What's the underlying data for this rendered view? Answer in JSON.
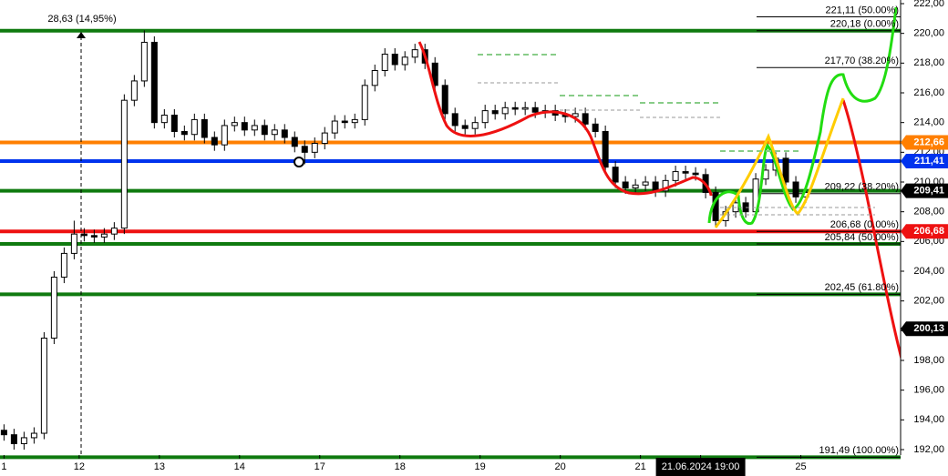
{
  "chart_data": {
    "type": "candlestick",
    "measure_label": "28,63 (14,95%)",
    "xlim": [
      -0.4,
      89.5
    ],
    "ylim": [
      191.7,
      222.2
    ],
    "xticks": [
      {
        "value": 0,
        "label": "1"
      },
      {
        "value": 7.5,
        "label": "12"
      },
      {
        "value": 15.5,
        "label": "13"
      },
      {
        "value": 23.5,
        "label": "14"
      },
      {
        "value": 31.5,
        "label": "17"
      },
      {
        "value": 39.5,
        "label": "18"
      },
      {
        "value": 47.5,
        "label": "19"
      },
      {
        "value": 55.5,
        "label": "20"
      },
      {
        "value": 63.5,
        "label": "21"
      },
      {
        "value": 69.5,
        "label": "21.06.2024 19:00"
      },
      {
        "value": 79.5,
        "label": "25"
      }
    ],
    "yticks": [
      {
        "value": 192,
        "label": "192,00"
      },
      {
        "value": 194,
        "label": "194,00"
      },
      {
        "value": 196,
        "label": "196,00"
      },
      {
        "value": 198,
        "label": "198,00"
      },
      {
        "value": 200,
        "label": "200,00"
      },
      {
        "value": 202,
        "label": "202,00"
      },
      {
        "value": 204,
        "label": "204,00"
      },
      {
        "value": 206,
        "label": "206,00"
      },
      {
        "value": 208,
        "label": "208,00"
      },
      {
        "value": 210,
        "label": "210,00"
      },
      {
        "value": 212,
        "label": "212,00"
      },
      {
        "value": 214,
        "label": "214,00"
      },
      {
        "value": 216,
        "label": "216,00"
      },
      {
        "value": 218,
        "label": "218,00"
      },
      {
        "value": 220,
        "label": "220,00"
      },
      {
        "value": 222,
        "label": "222,00"
      }
    ],
    "open": [
      193.3,
      193.0,
      192.4,
      192.8,
      193.1,
      199.5,
      203.6,
      205.2,
      206.5,
      206.4,
      206.3,
      206.5,
      206.9,
      215.5,
      216.8,
      219.4,
      214.0,
      214.5,
      213.4,
      213.2,
      214.2,
      213.0,
      212.5,
      213.8,
      214.0,
      213.5,
      213.8,
      213.2,
      213.5,
      213.0,
      212.4,
      212.0,
      212.6,
      213.3,
      214.1,
      214.0,
      214.2,
      216.5,
      217.5,
      218.6,
      217.9,
      218.4,
      218.9,
      218.0,
      216.5,
      214.6,
      213.8,
      213.6,
      214.0,
      214.8,
      214.6,
      215.0,
      214.9,
      215.0,
      214.7,
      214.8,
      214.5,
      214.4,
      214.6,
      213.9,
      213.4,
      211.0,
      210.0,
      209.6,
      209.8,
      210.0,
      209.4,
      210.1,
      210.7,
      210.6,
      210.5,
      209.3,
      207.4,
      208.0,
      208.6,
      208.0,
      210.2,
      210.8,
      211.6,
      210.0,
      209.0
    ],
    "high": [
      193.7,
      193.4,
      193.2,
      193.5,
      199.9,
      204.0,
      205.6,
      207.4,
      206.9,
      206.8,
      206.9,
      207.3,
      215.9,
      217.2,
      220.2,
      219.8,
      214.9,
      214.9,
      213.8,
      214.6,
      214.6,
      213.4,
      214.2,
      214.4,
      214.4,
      214.2,
      214.2,
      213.9,
      213.9,
      213.4,
      212.8,
      213.0,
      213.7,
      214.5,
      214.5,
      214.6,
      216.9,
      217.9,
      219.0,
      219.0,
      218.8,
      219.3,
      219.3,
      218.4,
      216.9,
      215.0,
      214.2,
      214.4,
      215.2,
      215.2,
      215.4,
      215.4,
      215.4,
      215.4,
      215.2,
      215.2,
      214.9,
      215.0,
      215.0,
      214.3,
      213.8,
      211.4,
      210.4,
      210.2,
      210.4,
      210.4,
      210.5,
      211.1,
      211.1,
      211.0,
      210.9,
      209.7,
      208.4,
      209.0,
      209.0,
      210.6,
      211.2,
      212.0,
      212.0,
      210.4,
      209.7
    ],
    "low": [
      192.6,
      192.0,
      192.0,
      192.4,
      192.7,
      199.1,
      203.2,
      204.8,
      206.0,
      205.9,
      205.9,
      206.1,
      206.5,
      215.1,
      216.4,
      213.6,
      213.6,
      213.0,
      212.8,
      212.8,
      212.6,
      212.1,
      212.1,
      213.4,
      213.1,
      213.1,
      212.8,
      212.8,
      212.6,
      212.0,
      211.2,
      211.6,
      212.2,
      212.9,
      213.6,
      213.6,
      213.8,
      216.1,
      217.1,
      217.5,
      217.5,
      218.0,
      217.6,
      216.1,
      214.2,
      213.4,
      213.2,
      213.2,
      213.6,
      214.2,
      214.2,
      214.5,
      214.5,
      214.3,
      214.3,
      214.1,
      214.0,
      214.0,
      213.5,
      213.0,
      210.6,
      209.6,
      209.2,
      209.2,
      209.4,
      209.0,
      209.0,
      209.7,
      210.2,
      210.1,
      208.9,
      207.0,
      207.0,
      207.6,
      207.6,
      207.6,
      209.8,
      210.4,
      209.6,
      208.6,
      208.6
    ],
    "close": [
      193.0,
      192.4,
      192.8,
      193.1,
      199.5,
      203.6,
      205.2,
      206.5,
      206.4,
      206.3,
      206.5,
      206.9,
      215.5,
      216.8,
      219.4,
      214.0,
      214.5,
      213.4,
      213.2,
      214.2,
      213.0,
      212.5,
      213.8,
      214.0,
      213.5,
      213.8,
      213.2,
      213.5,
      213.0,
      212.4,
      212.0,
      212.6,
      213.3,
      214.1,
      214.0,
      214.2,
      216.5,
      217.5,
      218.6,
      217.9,
      218.4,
      218.9,
      218.0,
      216.5,
      214.6,
      213.8,
      213.6,
      214.0,
      214.8,
      214.6,
      215.0,
      214.9,
      215.0,
      214.7,
      214.8,
      214.5,
      214.4,
      214.6,
      213.9,
      213.4,
      211.0,
      210.0,
      209.6,
      209.8,
      210.0,
      209.4,
      210.1,
      210.7,
      210.6,
      210.5,
      209.3,
      207.4,
      208.0,
      208.6,
      208.0,
      210.2,
      210.8,
      211.6,
      210.0,
      209.0,
      209.3
    ],
    "levels": [
      {
        "value": 220.18,
        "color": "#0f7a0f"
      },
      {
        "value": 212.66,
        "color": "#ff7f00"
      },
      {
        "value": 211.41,
        "color": "#0033ee"
      },
      {
        "value": 209.41,
        "color": "#0f7a0f"
      },
      {
        "value": 206.68,
        "color": "#ee1111"
      },
      {
        "value": 205.84,
        "color": "#0f7a0f"
      },
      {
        "value": 202.45,
        "color": "#0f7a0f"
      },
      {
        "value": 191.49,
        "color": "#0f7a0f"
      }
    ],
    "price_badges": [
      {
        "value": 212.66,
        "label": "212,66",
        "color": "#ff7f00"
      },
      {
        "value": 211.41,
        "label": "211,41",
        "color": "#0033ee"
      },
      {
        "value": 209.41,
        "label": "209,41",
        "color": "#000000"
      },
      {
        "value": 206.68,
        "label": "206,68",
        "color": "#ee1111"
      },
      {
        "value": 200.13,
        "label": "200,13",
        "color": "#000000"
      }
    ],
    "fib_labels": [
      {
        "value": 221.11,
        "label": "221,11 (50.00%)"
      },
      {
        "value": 220.18,
        "label": "220,18 (0.00%)"
      },
      {
        "value": 217.7,
        "label": "217,70 (38.20%)"
      },
      {
        "value": 209.22,
        "label": "209,22 (38.20%)"
      },
      {
        "value": 206.68,
        "label": "206,68 (0.00%)"
      },
      {
        "value": 205.84,
        "label": "205,84 (50.00%)"
      },
      {
        "value": 202.45,
        "label": "202,45 (61.80%)"
      },
      {
        "value": 191.49,
        "label": "191,49 (100.00%)"
      }
    ]
  }
}
